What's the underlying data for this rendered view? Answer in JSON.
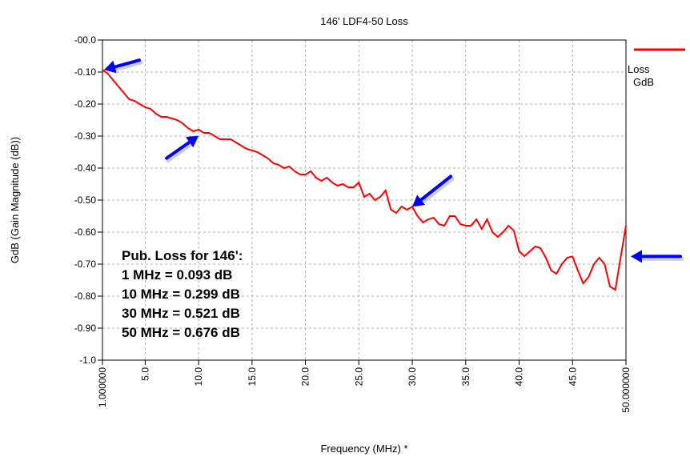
{
  "chart_data": {
    "type": "line",
    "title": "146' LDF4-50 Loss",
    "xlabel": "Frequency (MHz) *",
    "ylabel": "GdB  (Gain Magnitude (dB))",
    "xlim": [
      1.0,
      50.0
    ],
    "ylim": [
      -1.0,
      0.0
    ],
    "x_ticks": [
      1.0,
      5.0,
      10.0,
      15.0,
      20.0,
      25.0,
      30.0,
      35.0,
      40.0,
      45.0,
      50.0
    ],
    "x_tick_labels": [
      "1.000000",
      "5.0",
      "10.0",
      "15.0",
      "20.0",
      "25.0",
      "30.0",
      "35.0",
      "40.0",
      "45.0",
      "50.000000"
    ],
    "y_ticks": [
      0.0,
      -0.1,
      -0.2,
      -0.3,
      -0.4,
      -0.5,
      -0.6,
      -0.7,
      -0.8,
      -0.9,
      -1.0
    ],
    "y_tick_labels": [
      "-00.0",
      "-0.10",
      "-0.20",
      "-0.30",
      "-0.40",
      "-0.50",
      "-0.60",
      "-0.70",
      "-0.80",
      "-0.90",
      "-1.0"
    ],
    "grid": true,
    "legend_position": "top-right",
    "legend": {
      "label": "Loss",
      "sublabel": "GdB"
    },
    "series": [
      {
        "name": "Loss",
        "color": "#ff0000",
        "x": [
          1.0,
          1.5,
          2.0,
          2.5,
          3.0,
          3.5,
          4.0,
          4.5,
          5.0,
          5.5,
          6.0,
          6.5,
          7.0,
          7.5,
          8.0,
          8.5,
          9.0,
          9.5,
          10.0,
          10.5,
          11.0,
          11.5,
          12.0,
          12.5,
          13.0,
          13.5,
          14.0,
          14.5,
          15.0,
          15.5,
          16.0,
          16.5,
          17.0,
          17.5,
          18.0,
          18.5,
          19.0,
          19.5,
          20.0,
          20.5,
          21.0,
          21.5,
          22.0,
          22.5,
          23.0,
          23.5,
          24.0,
          24.5,
          25.0,
          25.5,
          26.0,
          26.5,
          27.0,
          27.5,
          28.0,
          28.5,
          29.0,
          29.5,
          30.0,
          30.5,
          31.0,
          31.5,
          32.0,
          32.5,
          33.0,
          33.5,
          34.0,
          34.5,
          35.0,
          35.5,
          36.0,
          36.5,
          37.0,
          37.5,
          38.0,
          38.5,
          39.0,
          39.5,
          40.0,
          40.5,
          41.0,
          41.5,
          42.0,
          42.5,
          43.0,
          43.5,
          44.0,
          44.5,
          45.0,
          45.5,
          46.0,
          46.5,
          47.0,
          47.5,
          48.0,
          48.5,
          49.0,
          49.5,
          50.0
        ],
        "values": [
          -0.093,
          -0.105,
          -0.125,
          -0.145,
          -0.165,
          -0.185,
          -0.19,
          -0.2,
          -0.21,
          -0.215,
          -0.23,
          -0.24,
          -0.24,
          -0.245,
          -0.25,
          -0.26,
          -0.275,
          -0.285,
          -0.28,
          -0.29,
          -0.29,
          -0.3,
          -0.31,
          -0.31,
          -0.31,
          -0.32,
          -0.33,
          -0.34,
          -0.345,
          -0.35,
          -0.36,
          -0.37,
          -0.385,
          -0.39,
          -0.4,
          -0.395,
          -0.41,
          -0.42,
          -0.42,
          -0.41,
          -0.43,
          -0.44,
          -0.43,
          -0.445,
          -0.455,
          -0.45,
          -0.46,
          -0.46,
          -0.445,
          -0.49,
          -0.48,
          -0.5,
          -0.49,
          -0.47,
          -0.53,
          -0.54,
          -0.52,
          -0.53,
          -0.521,
          -0.55,
          -0.57,
          -0.56,
          -0.555,
          -0.575,
          -0.58,
          -0.55,
          -0.55,
          -0.575,
          -0.58,
          -0.58,
          -0.56,
          -0.59,
          -0.56,
          -0.6,
          -0.615,
          -0.6,
          -0.58,
          -0.595,
          -0.66,
          -0.675,
          -0.66,
          -0.645,
          -0.65,
          -0.68,
          -0.72,
          -0.73,
          -0.7,
          -0.68,
          -0.676,
          -0.72,
          -0.76,
          -0.74,
          -0.7,
          -0.68,
          -0.7,
          -0.77,
          -0.78,
          -0.68,
          -0.58
        ]
      }
    ],
    "annotations": [
      {
        "text": "Pub. Loss for 146':"
      },
      {
        "text": "1 MHz = 0.093 dB"
      },
      {
        "text": "10 MHz = 0.299 dB"
      },
      {
        "text": "30 MHz = 0.521 dB"
      },
      {
        "text": "50 MHz = 0.676 dB"
      }
    ],
    "arrows": [
      {
        "color": "#0000ff",
        "points_to": {
          "x": 1.0,
          "y": -0.093
        }
      },
      {
        "color": "#0000ff",
        "points_to": {
          "x": 10.0,
          "y": -0.299
        }
      },
      {
        "color": "#0000ff",
        "points_to": {
          "x": 30.0,
          "y": -0.521
        }
      },
      {
        "color": "#0000ff",
        "points_to": {
          "x": 50.0,
          "y": -0.676
        }
      }
    ]
  }
}
